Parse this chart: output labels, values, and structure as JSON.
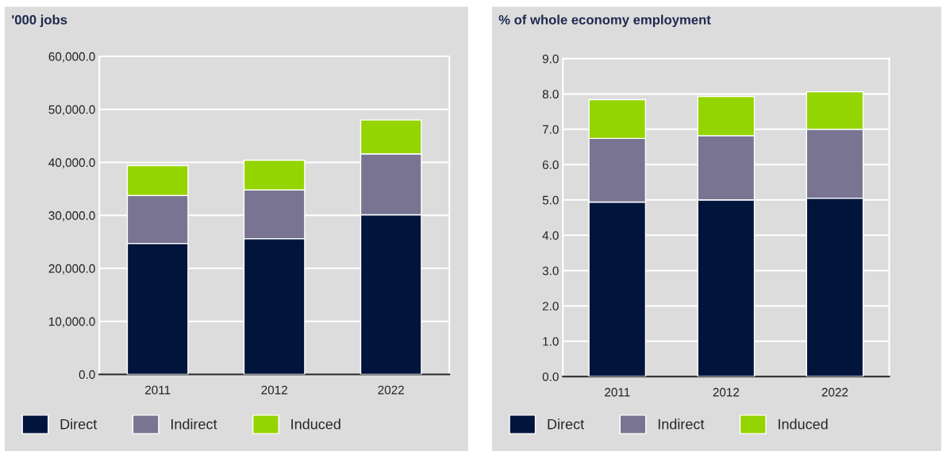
{
  "chart_data": [
    {
      "type": "bar",
      "stacked": true,
      "ylabel": "'000 jobs",
      "categories": [
        "2011",
        "2012",
        "2022"
      ],
      "series": [
        {
          "name": "Direct",
          "color": "#00143c",
          "values": [
            24700,
            25600,
            30100
          ]
        },
        {
          "name": "Indirect",
          "color": "#787492",
          "values": [
            9050,
            9200,
            11500
          ]
        },
        {
          "name": "Induced",
          "color": "#94d400",
          "values": [
            5650,
            5600,
            6400
          ]
        }
      ],
      "ylim": [
        0,
        60000
      ],
      "yticks": [
        {
          "value": 0,
          "label": "0.0"
        },
        {
          "value": 10000,
          "label": "10,000.0"
        },
        {
          "value": 20000,
          "label": "20,000.0"
        },
        {
          "value": 30000,
          "label": "30,000.0"
        },
        {
          "value": 40000,
          "label": "40,000.0"
        },
        {
          "value": 50000,
          "label": "50,000.0"
        },
        {
          "value": 60000,
          "label": "60,000.0"
        }
      ],
      "grid": "y",
      "legend": "bottom"
    },
    {
      "type": "bar",
      "stacked": true,
      "ylabel": "% of whole economy employment",
      "categories": [
        "2011",
        "2012",
        "2022"
      ],
      "series": [
        {
          "name": "Direct",
          "color": "#00143c",
          "values": [
            4.94,
            5.0,
            5.05
          ]
        },
        {
          "name": "Indirect",
          "color": "#787492",
          "values": [
            1.8,
            1.82,
            1.95
          ]
        },
        {
          "name": "Induced",
          "color": "#94d400",
          "values": [
            1.1,
            1.11,
            1.06
          ]
        }
      ],
      "ylim": [
        0,
        9
      ],
      "yticks": [
        {
          "value": 0,
          "label": "0.0"
        },
        {
          "value": 1,
          "label": "1.0"
        },
        {
          "value": 2,
          "label": "2.0"
        },
        {
          "value": 3,
          "label": "3.0"
        },
        {
          "value": 4,
          "label": "4.0"
        },
        {
          "value": 5,
          "label": "5.0"
        },
        {
          "value": 6,
          "label": "6.0"
        },
        {
          "value": 7,
          "label": "7.0"
        },
        {
          "value": 8,
          "label": "8.0"
        },
        {
          "value": 9,
          "label": "9.0"
        }
      ],
      "grid": "y",
      "legend": "bottom"
    }
  ]
}
